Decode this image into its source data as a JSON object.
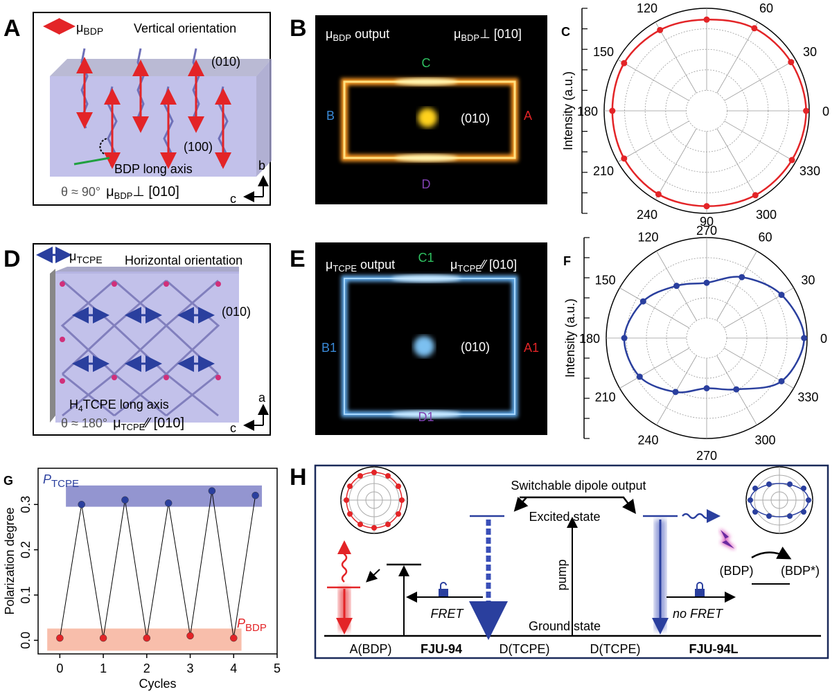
{
  "panels": {
    "A": {
      "letter": "A",
      "mu": "μ",
      "mu_sub": "BDP",
      "orientation": "Vertical orientation",
      "face1": "(010)",
      "face2": "(100)",
      "axis_label": "BDP long axis",
      "theta": "θ ≈ 90°",
      "mu2": "μ",
      "mu2_sub": "BDP",
      "relation": "⊥  [010]",
      "ax1": "b",
      "ax2": "c"
    },
    "B": {
      "letter": "B",
      "mu": "μ",
      "mu_sub": "BDP",
      "output": " output",
      "mu2": "μ",
      "mu2_sub": "BDP",
      "relation": "⊥  [010]",
      "top": "C",
      "right": "A",
      "left": "B",
      "bottom": "D",
      "face": "(010)"
    },
    "D": {
      "letter": "D",
      "mu": "μ",
      "mu_sub": "TCPE",
      "orientation": "Horizontal orientation",
      "face1": "(010)",
      "axis_pre": "H",
      "axis_sub": "4",
      "axis_label": "TCPE long axis",
      "theta": "θ ≈ 180°",
      "mu2": "μ",
      "mu2_sub": "TCPE",
      "relation": "⁄⁄ [010]",
      "ax1": "a",
      "ax2": "c"
    },
    "E": {
      "letter": "E",
      "mu": "μ",
      "mu_sub": "TCPE",
      "output": " output",
      "mu2": "μ",
      "mu2_sub": "TCPE",
      "relation": "⁄⁄ [010]",
      "top": "C1",
      "right": "A1",
      "left": "B1",
      "bottom": "D1",
      "face": "(010)"
    },
    "H": {
      "letter": "H",
      "switch": "Switchable dipole output",
      "excited": "Excited state",
      "ground": "Ground state",
      "pump": "pump",
      "fret": "FRET",
      "nofret": "no FRET",
      "bdp": "(BDP)",
      "bdpstar": "(BDP*)",
      "l1": "A(BDP)",
      "l2": "FJU-94",
      "l3": "D(TCPE)",
      "l4": "D(TCPE)",
      "l5": "FJU-94L"
    }
  },
  "chart_data": [
    {
      "type": "polar",
      "label": "C",
      "rlabel": "Intensity (a.u.)",
      "color": "#e32427",
      "theta": [
        0,
        30,
        60,
        90,
        120,
        150,
        180,
        210,
        240,
        270,
        300,
        330
      ],
      "values": [
        0.97,
        0.95,
        0.93,
        0.89,
        0.91,
        0.93,
        0.92,
        0.93,
        0.94,
        0.93,
        0.95,
        0.96
      ],
      "rlim": [
        0,
        1
      ],
      "rticks": [
        0.2,
        0.4,
        0.6,
        0.8,
        1
      ],
      "thetaticks": [
        0,
        30,
        60,
        90,
        120,
        150,
        180,
        210,
        240,
        270,
        300,
        330
      ]
    },
    {
      "type": "polar",
      "label": "F",
      "rlabel": "Intensity (a.u.)",
      "color": "#2a3f9e",
      "theta": [
        0,
        30,
        60,
        90,
        120,
        150,
        180,
        210,
        240,
        270,
        300,
        330
      ],
      "values": [
        0.97,
        0.86,
        0.7,
        0.55,
        0.6,
        0.73,
        0.82,
        0.77,
        0.62,
        0.5,
        0.59,
        0.86
      ],
      "rlim": [
        0,
        1
      ],
      "rticks": [
        0.2,
        0.4,
        0.6,
        0.8,
        1
      ],
      "thetaticks": [
        0,
        30,
        60,
        90,
        120,
        150,
        180,
        210,
        240,
        270,
        300,
        330
      ]
    },
    {
      "type": "scatter",
      "label": "G",
      "xlabel": "Cycles",
      "ylabel": "Polarization degree",
      "xlim": [
        -0.5,
        5
      ],
      "xticks": [
        0,
        1,
        2,
        3,
        4,
        5
      ],
      "ylim": [
        -0.03,
        0.38
      ],
      "yticks": [
        {
          "value": 0,
          "label": "0.0"
        },
        0.1,
        0.2,
        0.3
      ],
      "series": [
        {
          "name": "P",
          "name_sub": "TCPE",
          "color": "#2a3f9e",
          "x": [
            0.5,
            1.5,
            2.5,
            3.5,
            4.5
          ],
          "values": [
            0.3,
            0.31,
            0.303,
            0.33,
            0.32
          ]
        },
        {
          "name": "P",
          "name_sub": "BDP",
          "color": "#e32427",
          "x": [
            0,
            1,
            2,
            3,
            4
          ],
          "values": [
            0.005,
            0.005,
            0.005,
            0.01,
            0.005
          ]
        }
      ],
      "bands": [
        {
          "xlim": [
            0.14,
            4.65
          ],
          "ylim": [
            0.295,
            0.342
          ],
          "color": "#8083c8"
        },
        {
          "xlim": [
            -0.29,
            4.18
          ],
          "ylim": [
            -0.023,
            0.026
          ],
          "color": "#f7b39c"
        }
      ]
    }
  ]
}
